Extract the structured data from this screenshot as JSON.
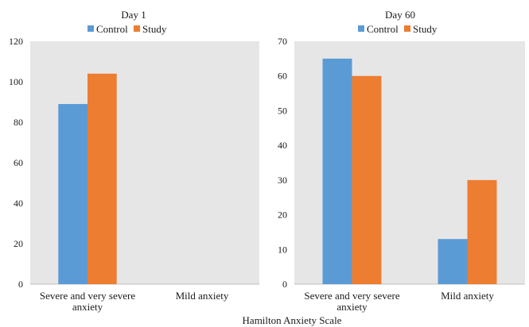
{
  "xlabel": "Hamilton Anxiety Scale",
  "chart_data": [
    {
      "type": "bar",
      "title": "Day 1",
      "categories": [
        "Severe and very severe anxiety",
        "Mild anxiety"
      ],
      "category_lines": [
        [
          "Severe and very severe",
          "anxiety"
        ],
        [
          "Mild anxiety"
        ]
      ],
      "series": [
        {
          "name": "Control",
          "color": "#5b9bd5",
          "values": [
            89,
            0
          ]
        },
        {
          "name": "Study",
          "color": "#ed7d31",
          "values": [
            104,
            0
          ]
        }
      ],
      "ylim": [
        0,
        120
      ],
      "yticks": [
        0,
        20,
        40,
        60,
        80,
        100,
        120
      ],
      "legend": "top",
      "grid": false,
      "plot_background": "#e7e6e6"
    },
    {
      "type": "bar",
      "title": "Day 60",
      "categories": [
        "Severe and very severe anxiety",
        "Mild anxiety"
      ],
      "category_lines": [
        [
          "Severe and very severe",
          "anxiety"
        ],
        [
          "Mild anxiety"
        ]
      ],
      "series": [
        {
          "name": "Control",
          "color": "#5b9bd5",
          "values": [
            65,
            13
          ]
        },
        {
          "name": "Study",
          "color": "#ed7d31",
          "values": [
            60,
            30
          ]
        }
      ],
      "ylim": [
        0,
        70
      ],
      "yticks": [
        0,
        10,
        20,
        30,
        40,
        50,
        60,
        70
      ],
      "legend": "top",
      "grid": false,
      "plot_background": "#e7e6e6"
    }
  ]
}
